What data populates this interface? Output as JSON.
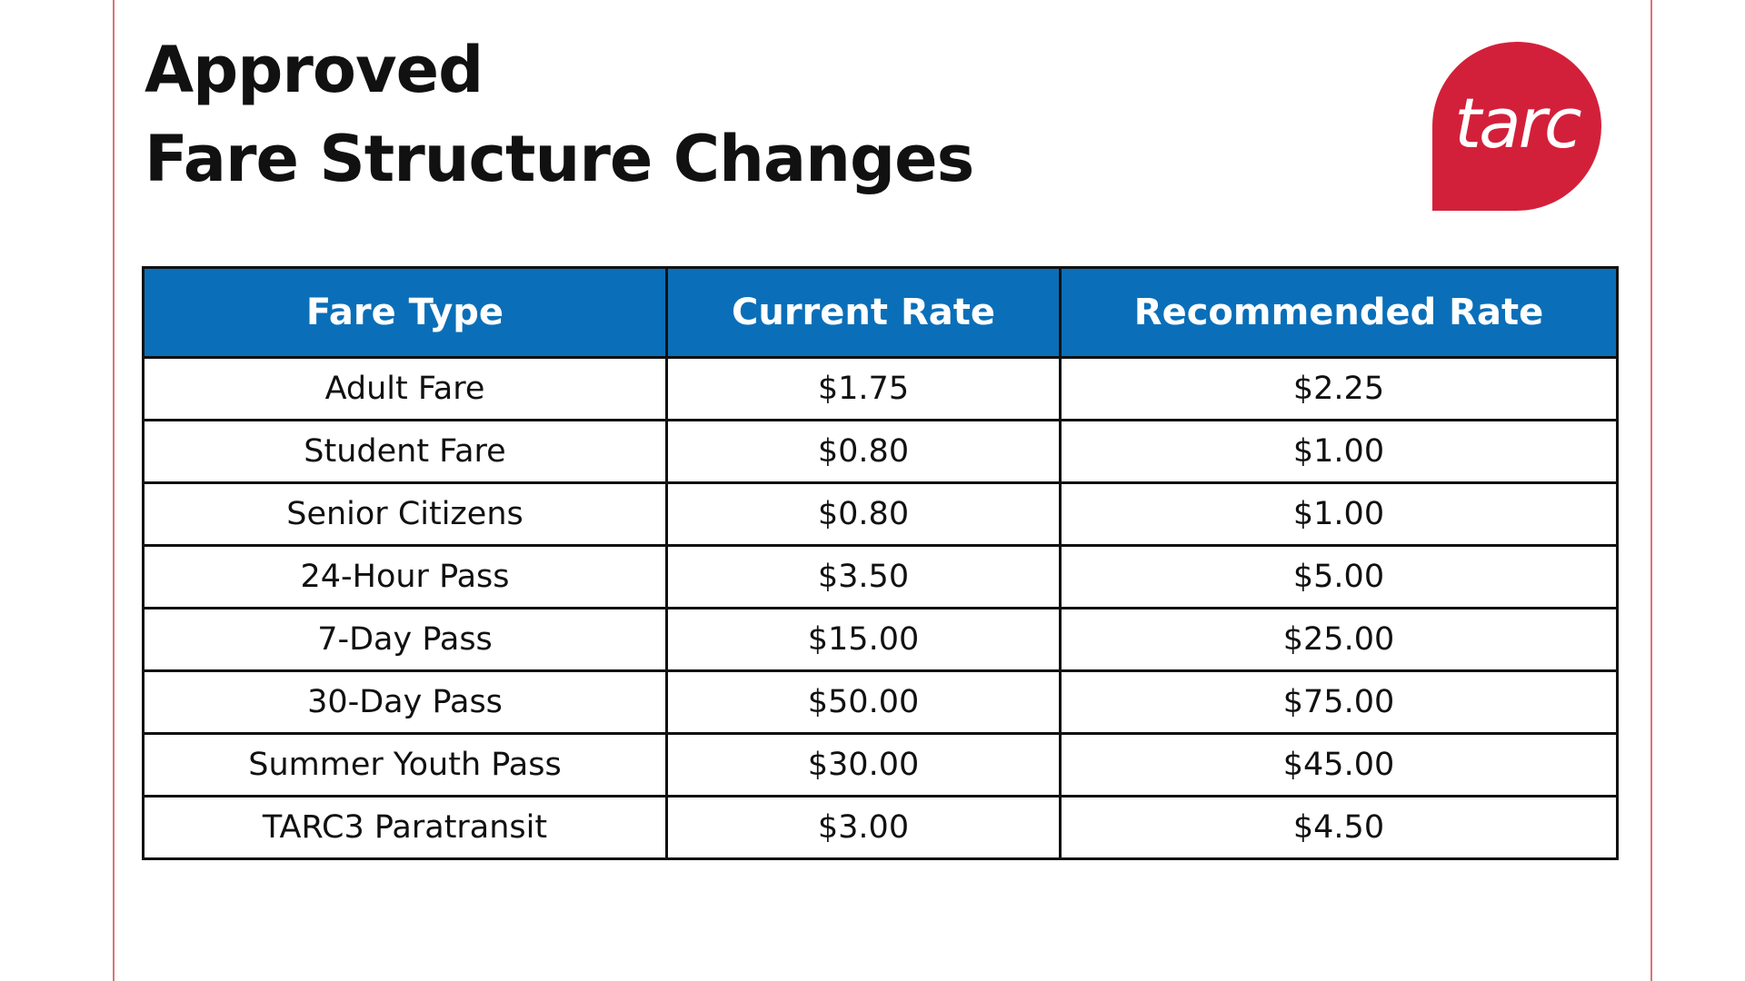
{
  "header": {
    "title_line1": "Approved",
    "title_line2": "Fare Structure Changes",
    "logo": "tarc"
  },
  "table": {
    "columns": [
      "Fare Type",
      "Current Rate",
      "Recommended Rate"
    ],
    "rows": [
      [
        "Adult Fare",
        "$1.75",
        "$2.25"
      ],
      [
        "Student Fare",
        "$0.80",
        "$1.00"
      ],
      [
        "Senior Citizens",
        "$0.80",
        "$1.00"
      ],
      [
        "24-Hour Pass",
        "$3.50",
        "$5.00"
      ],
      [
        "7-Day Pass",
        "$15.00",
        "$25.00"
      ],
      [
        "30-Day Pass",
        "$50.00",
        "$75.00"
      ],
      [
        "Summer Youth Pass",
        "$30.00",
        "$45.00"
      ],
      [
        "TARC3 Paratransit",
        "$3.00",
        "$4.50"
      ]
    ]
  }
}
